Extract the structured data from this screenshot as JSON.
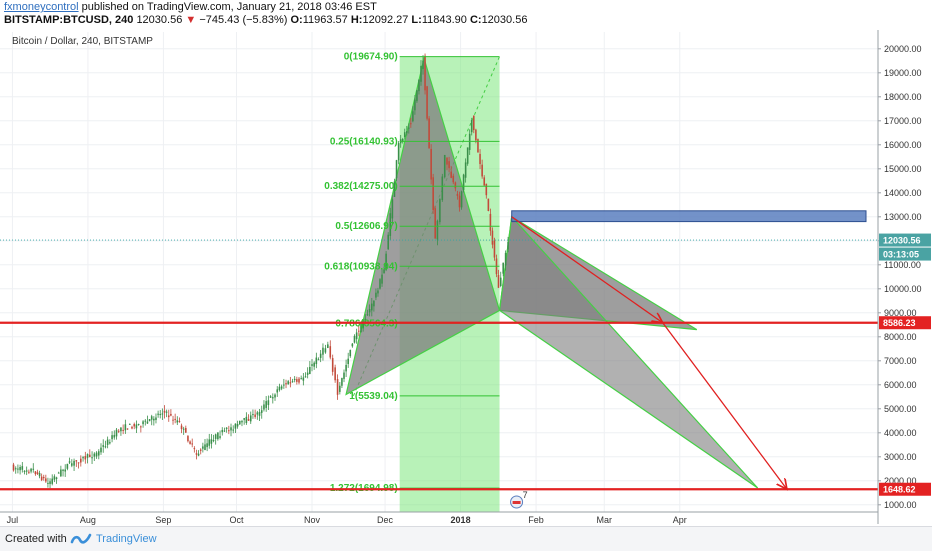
{
  "header": {
    "author": "fxmoneycontrol",
    "published_text": "published on TradingView.com, January 21, 2018 03:46 EST",
    "symbol": "BITSTAMP:BTCUSD, 240",
    "last": "12030.56",
    "change_arrow": "▼",
    "change": "−745.43 (−5.83%)",
    "o_label": "O:",
    "o_value": "11963.57",
    "h_label": "H:",
    "h_value": "12092.27",
    "l_label": "L:",
    "l_value": "11843.90",
    "c_label": "C:",
    "c_value": "12030.56"
  },
  "chart_title": "Bitcoin / Dollar, 240, BITSTAMP",
  "footer": {
    "created_with": "Created with",
    "brand": "TradingView"
  },
  "colors": {
    "price_line": "#e32222",
    "fib_text": "#33c233",
    "fib_zone": "#7ee87e",
    "pattern_fill": "#7d7d7d",
    "pattern_stroke": "#45d045",
    "rect_fill": "#5b7fc0",
    "arrow": "#e02020",
    "candle_up": "#3a8f4a",
    "candle_down": "#c24a3a"
  },
  "chart_data": {
    "type": "candlestick",
    "title": "Bitcoin / Dollar, 240, BITSTAMP",
    "x_tick_labels": [
      "Jul",
      "Aug",
      "Sep",
      "Oct",
      "Nov",
      "Dec",
      "2018",
      "Feb",
      "Mar",
      "Apr"
    ],
    "y_ticks": [
      1000,
      2000,
      3000,
      4000,
      5000,
      6000,
      7000,
      8000,
      9000,
      10000,
      11000,
      12000,
      13000,
      14000,
      15000,
      16000,
      17000,
      18000,
      19000,
      20000
    ],
    "y_tick_labels": [
      "1000.00",
      "2000.00",
      "3000.00",
      "4000.00",
      "5000.00",
      "6000.00",
      "7000.00",
      "8000.00",
      "9000.00",
      "10000.00",
      "11000.00",
      "12000.00",
      "13000.00",
      "14000.00",
      "15000.00",
      "16000.00",
      "17000.00",
      "18000.00",
      "19000.00",
      "20000.00"
    ],
    "ylim": [
      700,
      20700
    ],
    "price_path": [
      {
        "date": "2017-07-01",
        "price": 2550
      },
      {
        "date": "2017-07-10",
        "price": 2450
      },
      {
        "date": "2017-07-16",
        "price": 1900
      },
      {
        "date": "2017-07-24",
        "price": 2650
      },
      {
        "date": "2017-08-05",
        "price": 3150
      },
      {
        "date": "2017-08-15",
        "price": 4200
      },
      {
        "date": "2017-08-25",
        "price": 4400
      },
      {
        "date": "2017-09-01",
        "price": 4900
      },
      {
        "date": "2017-09-08",
        "price": 4400
      },
      {
        "date": "2017-09-15",
        "price": 3100
      },
      {
        "date": "2017-09-22",
        "price": 3800
      },
      {
        "date": "2017-10-01",
        "price": 4300
      },
      {
        "date": "2017-10-10",
        "price": 4800
      },
      {
        "date": "2017-10-20",
        "price": 6000
      },
      {
        "date": "2017-10-28",
        "price": 6200
      },
      {
        "date": "2017-11-05",
        "price": 7300
      },
      {
        "date": "2017-11-08",
        "price": 7700
      },
      {
        "date": "2017-11-12",
        "price": 5600
      },
      {
        "date": "2017-11-18",
        "price": 7800
      },
      {
        "date": "2017-11-26",
        "price": 9300
      },
      {
        "date": "2017-12-01",
        "price": 10800
      },
      {
        "date": "2017-12-07",
        "price": 16000
      },
      {
        "date": "2017-12-12",
        "price": 17000
      },
      {
        "date": "2017-12-17",
        "price": 19600
      },
      {
        "date": "2017-12-22",
        "price": 12000
      },
      {
        "date": "2017-12-26",
        "price": 15500
      },
      {
        "date": "2018-01-01",
        "price": 13500
      },
      {
        "date": "2018-01-06",
        "price": 17100
      },
      {
        "date": "2018-01-12",
        "price": 13800
      },
      {
        "date": "2018-01-17",
        "price": 10000
      },
      {
        "date": "2018-01-21",
        "price": 12030.56
      }
    ],
    "fib_levels": [
      {
        "label": "0(19674.90)",
        "price": 19674.9
      },
      {
        "label": "0.25(16140.93)",
        "price": 16140.93
      },
      {
        "label": "0.382(14275.00)",
        "price": 14275.0
      },
      {
        "label": "0.5(12606.97)",
        "price": 12606.97
      },
      {
        "label": "0.618(10938.94)",
        "price": 10938.94
      },
      {
        "label": "0.786(8564.3)",
        "price": 8564.3
      },
      {
        "label": "1(5539.04)",
        "price": 5539.04
      },
      {
        "label": "1.272(1694.98)",
        "price": 1694.98
      }
    ],
    "price_lines": [
      {
        "label": "8586.23",
        "price": 8586.23
      },
      {
        "label": "1648.62",
        "price": 1648.62
      }
    ],
    "current_price": {
      "label": "12030.56",
      "price": 12030.56
    },
    "countdown": "03:13:05",
    "event_badge": "7"
  }
}
